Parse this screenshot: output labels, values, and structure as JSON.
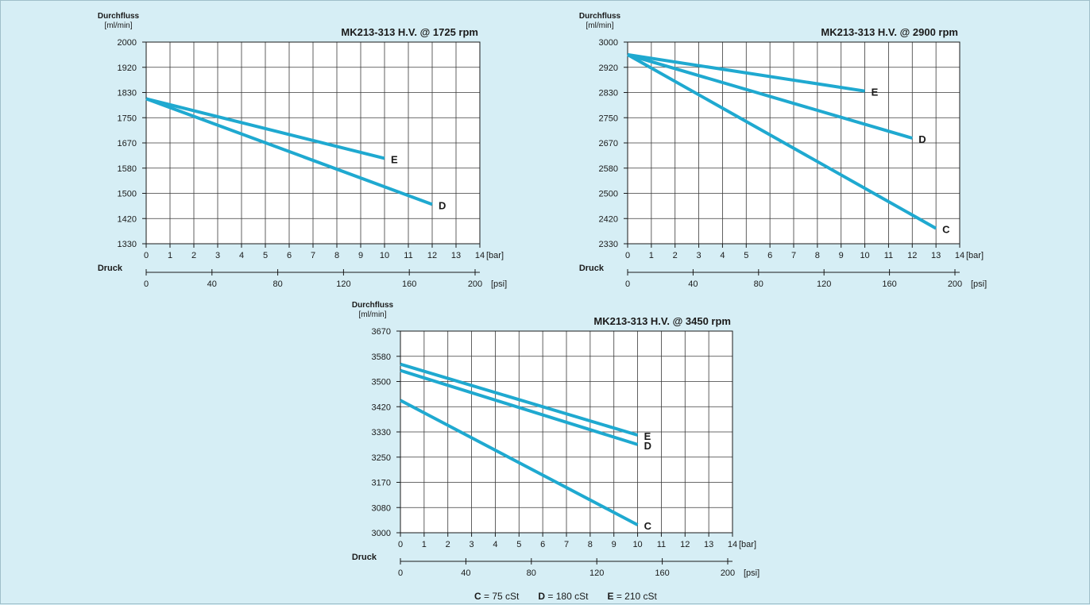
{
  "chart_data": [
    {
      "type": "line",
      "title": "MK213-313 H.V. @ 1725 rpm",
      "ylabel": "Durchfluss",
      "yunit": "[ml/min]",
      "xlabel": "Druck",
      "xunit_bar": "[bar]",
      "xunit_psi": "[psi]",
      "ylim": [
        1330,
        2000
      ],
      "yticks": [
        1330,
        1420,
        1500,
        1580,
        1670,
        1750,
        1830,
        1920,
        2000
      ],
      "xlim": [
        0,
        14
      ],
      "xticks": [
        0,
        1,
        2,
        3,
        4,
        5,
        6,
        7,
        8,
        9,
        10,
        11,
        12,
        13,
        14
      ],
      "psi_ticks": [
        0,
        40,
        80,
        120,
        160,
        200
      ],
      "grid": true,
      "series": [
        {
          "name": "E",
          "x": [
            0,
            10
          ],
          "y": [
            1810,
            1615
          ]
        },
        {
          "name": "D",
          "x": [
            0,
            12
          ],
          "y": [
            1810,
            1465
          ]
        }
      ]
    },
    {
      "type": "line",
      "title": "MK213-313 H.V. @ 2900 rpm",
      "ylabel": "Durchfluss",
      "yunit": "[ml/min]",
      "xlabel": "Druck",
      "xunit_bar": "[bar]",
      "xunit_psi": "[psi]",
      "ylim": [
        2330,
        3000
      ],
      "yticks": [
        2330,
        2420,
        2500,
        2580,
        2670,
        2750,
        2830,
        2920,
        3000
      ],
      "xlim": [
        0,
        14
      ],
      "xticks": [
        0,
        1,
        2,
        3,
        4,
        5,
        6,
        7,
        8,
        9,
        10,
        11,
        12,
        13,
        14
      ],
      "psi_ticks": [
        0,
        40,
        80,
        120,
        160,
        200
      ],
      "grid": true,
      "series": [
        {
          "name": "E",
          "x": [
            0,
            10
          ],
          "y": [
            2960,
            2835
          ]
        },
        {
          "name": "D",
          "x": [
            0,
            12
          ],
          "y": [
            2960,
            2685
          ]
        },
        {
          "name": "C",
          "x": [
            0,
            13
          ],
          "y": [
            2960,
            2385
          ]
        }
      ]
    },
    {
      "type": "line",
      "title": "MK213-313 H.V. @ 3450 rpm",
      "ylabel": "Durchfluss",
      "yunit": "[ml/min]",
      "xlabel": "Druck",
      "xunit_bar": "[bar]",
      "xunit_psi": "[psi]",
      "ylim": [
        3000,
        3670
      ],
      "yticks": [
        3000,
        3080,
        3170,
        3250,
        3330,
        3420,
        3500,
        3580,
        3670
      ],
      "xlim": [
        0,
        14
      ],
      "xticks": [
        0,
        1,
        2,
        3,
        4,
        5,
        6,
        7,
        8,
        9,
        10,
        11,
        12,
        13,
        14
      ],
      "psi_ticks": [
        0,
        40,
        80,
        120,
        160,
        200
      ],
      "grid": true,
      "series": [
        {
          "name": "E",
          "x": [
            0,
            10
          ],
          "y": [
            3555,
            3320
          ]
        },
        {
          "name": "D",
          "x": [
            0,
            10
          ],
          "y": [
            3535,
            3290
          ]
        },
        {
          "name": "C",
          "x": [
            0,
            10
          ],
          "y": [
            3440,
            3025
          ]
        }
      ]
    }
  ],
  "legend": {
    "items": [
      {
        "key": "C",
        "text": "= 75 cSt"
      },
      {
        "key": "D",
        "text": "= 180 cSt"
      },
      {
        "key": "E",
        "text": "= 210 cSt"
      }
    ]
  },
  "colors": {
    "line": "#1fa9d0",
    "background": "#d6eef5",
    "plot": "#ffffff"
  }
}
